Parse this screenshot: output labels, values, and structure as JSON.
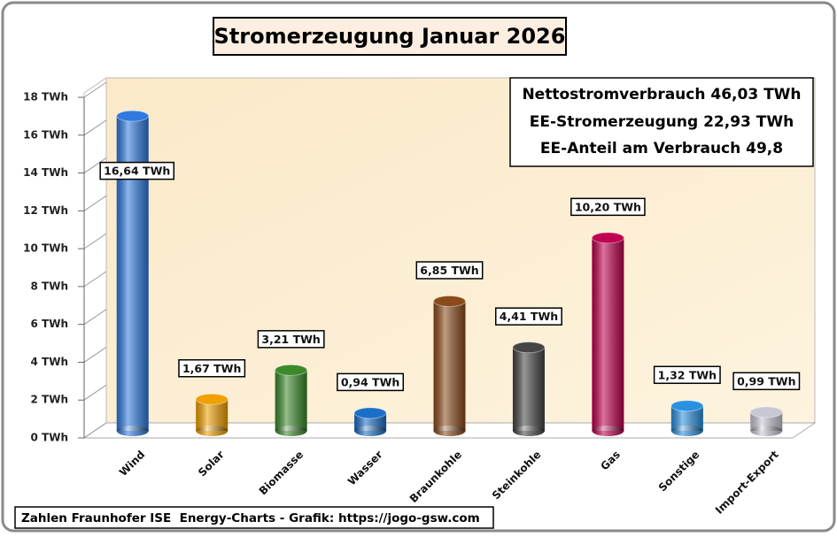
{
  "chart_data": {
    "type": "bar",
    "title": "Stromerzeugung Januar 2026",
    "annotations": [
      "Nettostromverbrauch 46,03 TWh",
      "EE-Stromerzeugung 22,93 TWh",
      "EE-Anteil am Verbrauch 49,8"
    ],
    "source": "Zahlen Fraunhofer ISE  Energy-Charts - Grafik: https://jogo-gsw.com",
    "categories": [
      "Wind",
      "Solar",
      "Biomasse",
      "Wasser",
      "Braunkohle",
      "Steinkohle",
      "Gas",
      "Sonstige",
      "Import-Export"
    ],
    "values": [
      16.64,
      1.67,
      3.21,
      0.94,
      6.85,
      4.41,
      10.2,
      1.32,
      0.99
    ],
    "value_labels": [
      "16,64 TWh",
      "1,67 TWh",
      "3,21 TWh",
      "0,94 TWh",
      "6,85 TWh",
      "4,41 TWh",
      "10,20 TWh",
      "1,32 TWh",
      "0,99 TWh"
    ],
    "colors": [
      "#2f7ae0",
      "#f0a000",
      "#3b8a2a",
      "#1a6fc8",
      "#8b4a1a",
      "#454545",
      "#c00050",
      "#2a90e0",
      "#c8c8d4"
    ],
    "ylim": [
      0,
      18
    ],
    "yticks": [
      {
        "value": 0,
        "label": "0 TWh"
      },
      {
        "value": 2,
        "label": "2 TWh"
      },
      {
        "value": 4,
        "label": "4 TWh"
      },
      {
        "value": 6,
        "label": "6 TWh"
      },
      {
        "value": 8,
        "label": "8 TWh"
      },
      {
        "value": 10,
        "label": "10 TWh"
      },
      {
        "value": 12,
        "label": "12 TWh"
      },
      {
        "value": 14,
        "label": "14 TWh"
      },
      {
        "value": 16,
        "label": "16 TWh"
      },
      {
        "value": 18,
        "label": "18 TWh"
      }
    ]
  }
}
